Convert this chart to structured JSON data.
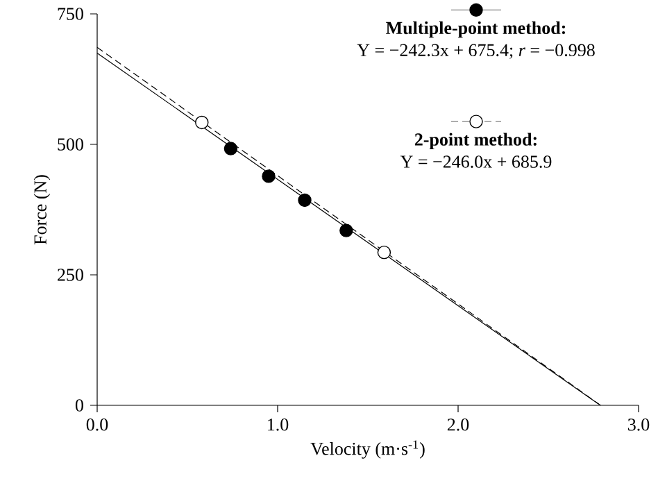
{
  "chart_data": {
    "type": "scatter",
    "xlabel": "Velocity (m·s$^{-1}$)",
    "ylabel": "Force (N)",
    "xlim": [
      0,
      3
    ],
    "ylim": [
      0,
      750
    ],
    "xticks": [
      {
        "value": 0,
        "label": "0.0"
      },
      {
        "value": 1,
        "label": "1.0"
      },
      {
        "value": 2,
        "label": "2.0"
      },
      {
        "value": 3,
        "label": "3.0"
      }
    ],
    "yticks": [
      0,
      250,
      500,
      750
    ],
    "grid": false,
    "legend": "top right",
    "marker": "circle",
    "series": [
      {
        "name": "Multiple-point method:",
        "color": "#000000",
        "x": [
          0.74,
          0.95,
          1.15,
          1.38
        ],
        "values": [
          492,
          439,
          393,
          335
        ]
      },
      {
        "name": "2-point method:",
        "color": "#ffffff",
        "x": [
          0.58,
          1.59
        ],
        "values": [
          542,
          293
        ]
      },
      {
        "type": "line",
        "color": "#000000",
        "line_style": "solid",
        "marker": "none",
        "x": [
          0,
          2.78
        ],
        "values": [
          675,
          2
        ]
      },
      {
        "type": "line",
        "color": "#000000",
        "line_style": "dashed",
        "marker": "none",
        "x": [
          0,
          2.79
        ],
        "values": [
          686,
          0
        ]
      }
    ],
    "annotations": [
      "Y = −242.3x + 675.4; *r* = −0.998",
      "Y = −246.0x + 685.9"
    ]
  }
}
